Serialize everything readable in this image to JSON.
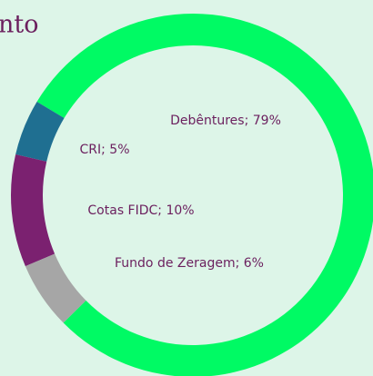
{
  "chart_data": {
    "type": "donut",
    "title": "nto",
    "categories": [
      "Debêntures",
      "CRI",
      "Cotas FIDC",
      "Fundo de Zeragem"
    ],
    "values": [
      79,
      5,
      10,
      6
    ],
    "value_labels": [
      "Debêntures; 79%",
      "CRI; 5%",
      "Cotas FIDC; 10%",
      "Fundo de Zeragem; 6%"
    ],
    "colors": [
      "#00fa64",
      "#1f6f91",
      "#7b2170",
      "#a6a6a6"
    ]
  }
}
